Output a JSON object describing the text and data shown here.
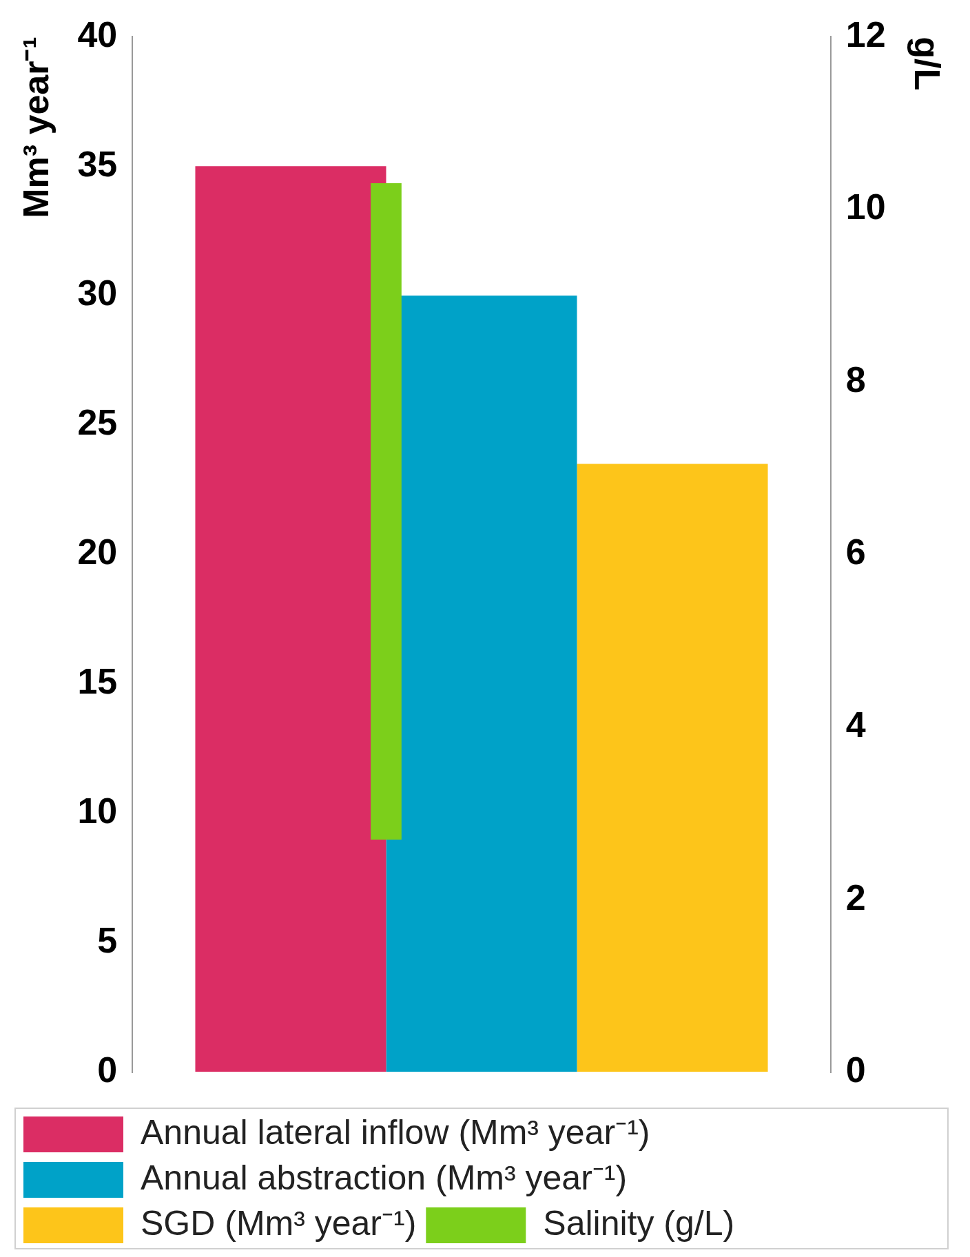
{
  "chart_data": {
    "type": "bar",
    "categories": [
      null
    ],
    "ylabel": "Mm³ year⁻¹",
    "y2label": "g/L",
    "ylim": [
      0,
      40
    ],
    "yticks": [
      0,
      5,
      10,
      15,
      20,
      25,
      30,
      35,
      40
    ],
    "y2lim": [
      0,
      12
    ],
    "y2ticks": [
      0,
      2,
      4,
      6,
      8,
      10,
      12
    ],
    "series": [
      {
        "name": "Annual lateral inflow (Mm³ year⁻¹)",
        "color": "#db2d64",
        "values": [
          35
        ]
      },
      {
        "name": "Annual abstraction (Mm³ year⁻¹)",
        "color": "#00a2c8",
        "values": [
          30
        ]
      },
      {
        "name": "SGD (Mm³ year⁻¹)",
        "color": "#fdc51a",
        "values": [
          23.5
        ]
      },
      {
        "name": "Salinity (g/L)",
        "color": "#7ccf1b",
        "axis": "y2",
        "base": [
          2.7
        ],
        "values": [
          7.6
        ]
      }
    ],
    "grid": false,
    "legend": "bottom"
  }
}
